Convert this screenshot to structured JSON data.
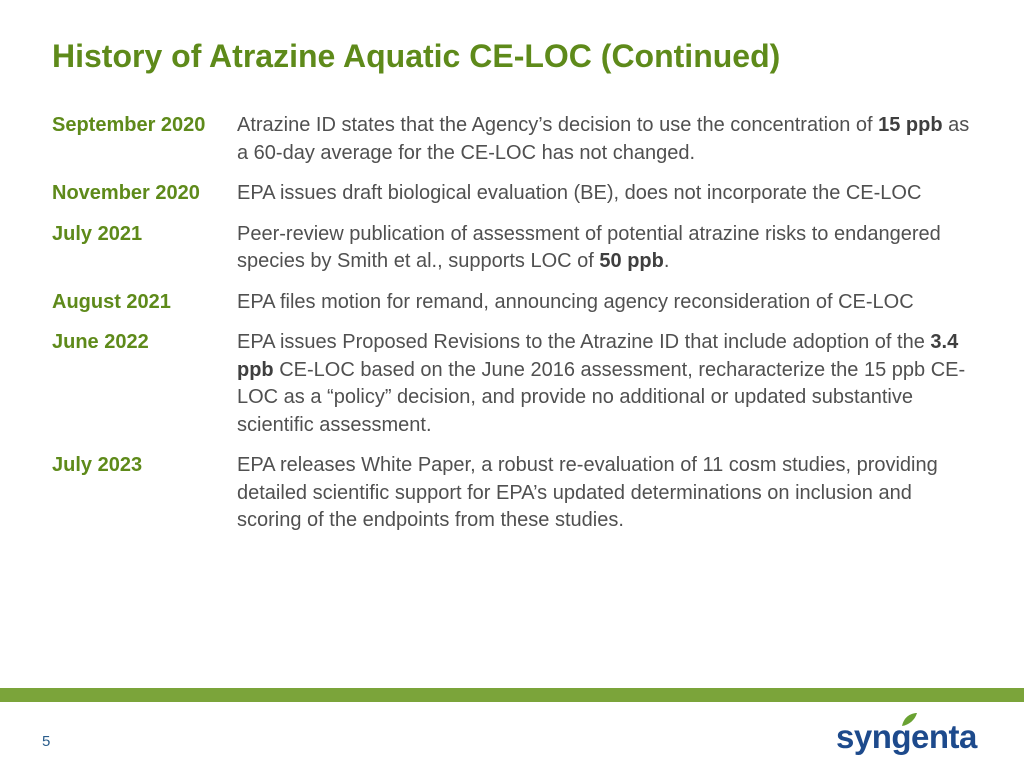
{
  "title": "History of Atrazine Aquatic CE-LOC (Continued)",
  "entries": [
    {
      "date": "September 2020",
      "parts": [
        {
          "text": "Atrazine ID states that the Agency’s decision to use the concentration of "
        },
        {
          "text": "15 ppb",
          "bold": true
        },
        {
          "text": " as a 60-day average for the CE-LOC has not changed."
        }
      ]
    },
    {
      "date": "November 2020",
      "parts": [
        {
          "text": "EPA issues draft biological evaluation (BE), does not incorporate the CE-LOC"
        }
      ]
    },
    {
      "date": "July 2021",
      "parts": [
        {
          "text": "Peer-review publication of assessment of potential atrazine risks to endangered species by Smith et al., supports LOC of "
        },
        {
          "text": "50 ppb",
          "bold": true
        },
        {
          "text": "."
        }
      ]
    },
    {
      "date": "August 2021",
      "parts": [
        {
          "text": "EPA files motion for remand, announcing agency reconsideration of CE-LOC"
        }
      ]
    },
    {
      "date": "June 2022",
      "parts": [
        {
          "text": "EPA issues Proposed Revisions to the Atrazine ID that include adoption of the "
        },
        {
          "text": "3.4 ppb",
          "bold": true
        },
        {
          "text": " CE-LOC based on the June 2016 assessment, recharacterize the 15 ppb CE-LOC as a “policy” decision, and provide no additional or updated substantive scientific assessment."
        }
      ]
    },
    {
      "date": "July 2023",
      "parts": [
        {
          "text": "EPA releases White Paper, a robust re-evaluation of 11 cosm studies, providing detailed scientific support for EPA’s updated determinations on inclusion and scoring of the endpoints from these studies."
        }
      ]
    }
  ],
  "footer": {
    "page_number": "5",
    "logo_text": "syngenta",
    "bar_color": "#7ba43a"
  },
  "colors": {
    "accent_green": "#5e8a1a",
    "body_text": "#505050",
    "logo_blue": "#1d4a8c"
  }
}
